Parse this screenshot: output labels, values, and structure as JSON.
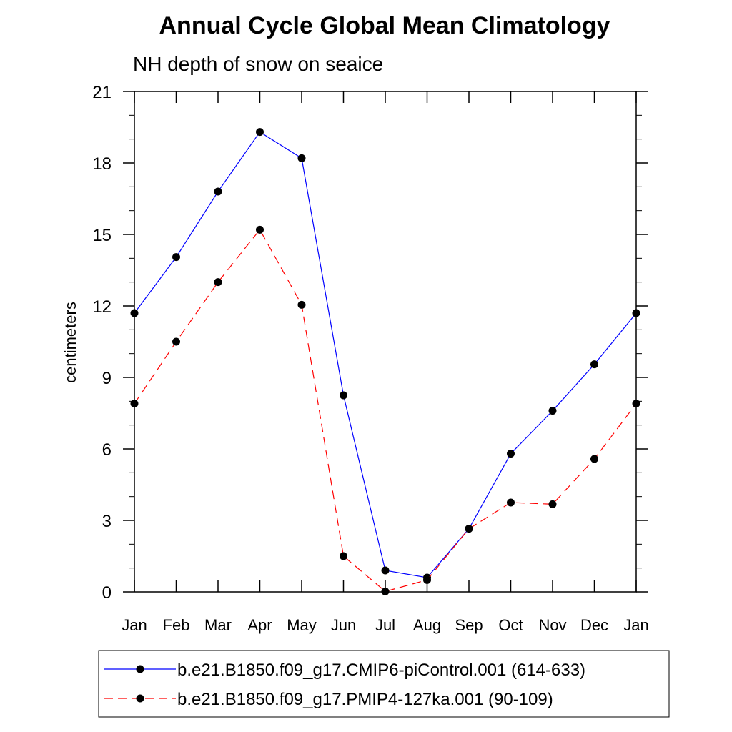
{
  "chart_data": {
    "type": "line",
    "title": "Annual Cycle Global Mean Climatology",
    "subtitle": "NH depth of snow on seaice",
    "xlabel": "",
    "ylabel": "centimeters",
    "categories": [
      "Jan",
      "Feb",
      "Mar",
      "Apr",
      "May",
      "Jun",
      "Jul",
      "Aug",
      "Sep",
      "Oct",
      "Nov",
      "Dec",
      "Jan"
    ],
    "ylim": [
      0,
      21
    ],
    "yticks": [
      0,
      3,
      6,
      9,
      12,
      15,
      18,
      21
    ],
    "legend_position": "bottom",
    "series": [
      {
        "name": "b.e21.B1850.f09_g17.CMIP6-piControl.001 (614-633)",
        "color": "#0000ff",
        "dash": "solid",
        "values": [
          11.7,
          14.05,
          16.8,
          19.3,
          18.2,
          8.25,
          0.9,
          0.6,
          2.65,
          5.8,
          7.6,
          9.55,
          11.7
        ]
      },
      {
        "name": "b.e21.B1850.f09_g17.PMIP4-127ka.001 (90-109)",
        "color": "#ff0000",
        "dash": "dashed",
        "values": [
          7.9,
          10.5,
          13.0,
          15.2,
          12.05,
          1.5,
          0.02,
          0.5,
          2.65,
          3.75,
          3.68,
          5.58,
          7.9
        ]
      }
    ]
  }
}
